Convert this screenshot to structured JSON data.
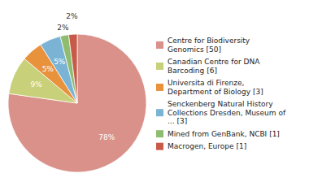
{
  "chart_data": {
    "type": "pie",
    "categories": [
      "Centre for Biodiversity\nGenomics [50]",
      "Canadian Centre for DNA\nBarcoding [6]",
      "Universita di Firenze,\nDepartment of Biology [3]",
      "Senckenberg Natural History\nCollections Dresden, Museum of\n... [3]",
      "Mined from GenBank, NCBI [1]",
      "Macrogen, Europe [1]"
    ],
    "values": [
      78,
      9,
      5,
      5,
      2,
      2
    ],
    "value_labels": [
      "78%",
      "9%",
      "5%",
      "5%",
      "2%",
      "2%"
    ],
    "colors": [
      "#d9918a",
      "#c8d07a",
      "#e8923c",
      "#7bb3d4",
      "#8fbc6e",
      "#c85a4a"
    ],
    "data_labels": true,
    "legend": "right"
  }
}
